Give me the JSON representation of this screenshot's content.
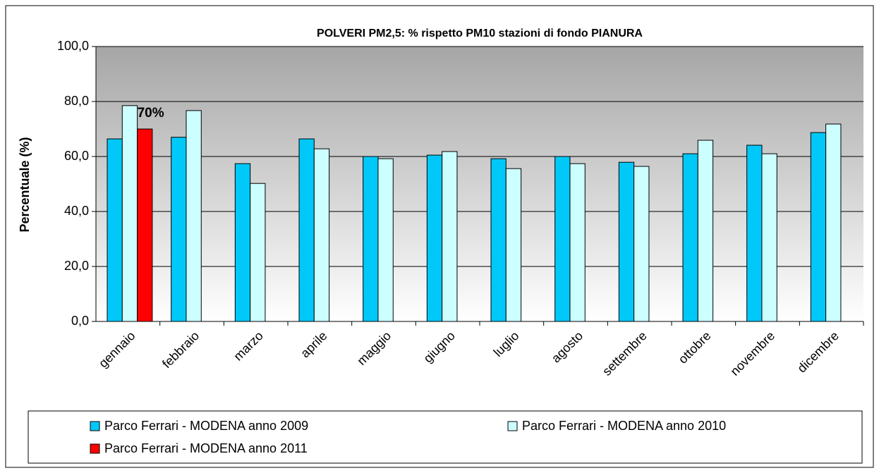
{
  "chart_data": {
    "type": "bar",
    "title": "POLVERI PM2,5: % rispetto PM10 stazioni di fondo PIANURA",
    "y_label": "Percentuale (%)",
    "categories": [
      "gennaio",
      "febbraio",
      "marzo",
      "aprile",
      "maggio",
      "giugno",
      "luglio",
      "agosto",
      "settembre",
      "ottobre",
      "novembre",
      "dicembre"
    ],
    "series": [
      {
        "name": "Parco Ferrari - MODENA anno 2009",
        "color": "#00c8f8",
        "values": [
          66.4,
          67.0,
          57.4,
          66.4,
          60.0,
          60.5,
          59.2,
          60.0,
          57.9,
          61.0,
          64.1,
          68.7
        ]
      },
      {
        "name": "Parco Ferrari - MODENA anno 2010",
        "color": "#ccffff",
        "values": [
          78.5,
          76.7,
          50.2,
          62.8,
          59.2,
          61.8,
          55.6,
          57.4,
          56.4,
          65.9,
          61.0,
          71.8
        ]
      },
      {
        "name": "Parco Ferrari - MODENA anno 2011",
        "color": "#ff0000",
        "values": [
          70,
          null,
          null,
          null,
          null,
          null,
          null,
          null,
          null,
          null,
          null,
          null
        ],
        "value_labels": [
          "70%",
          null,
          null,
          null,
          null,
          null,
          null,
          null,
          null,
          null,
          null,
          null
        ]
      }
    ],
    "ylim": [
      0,
      100
    ],
    "yticks": [
      {
        "value": 0,
        "label": "0,0"
      },
      {
        "value": 20,
        "label": "20,0"
      },
      {
        "value": 40,
        "label": "40,0"
      },
      {
        "value": 60,
        "label": "60,0"
      },
      {
        "value": 80,
        "label": "80,0"
      },
      {
        "value": 100,
        "label": "100,0"
      }
    ],
    "grid": true,
    "legend": "bottom"
  }
}
